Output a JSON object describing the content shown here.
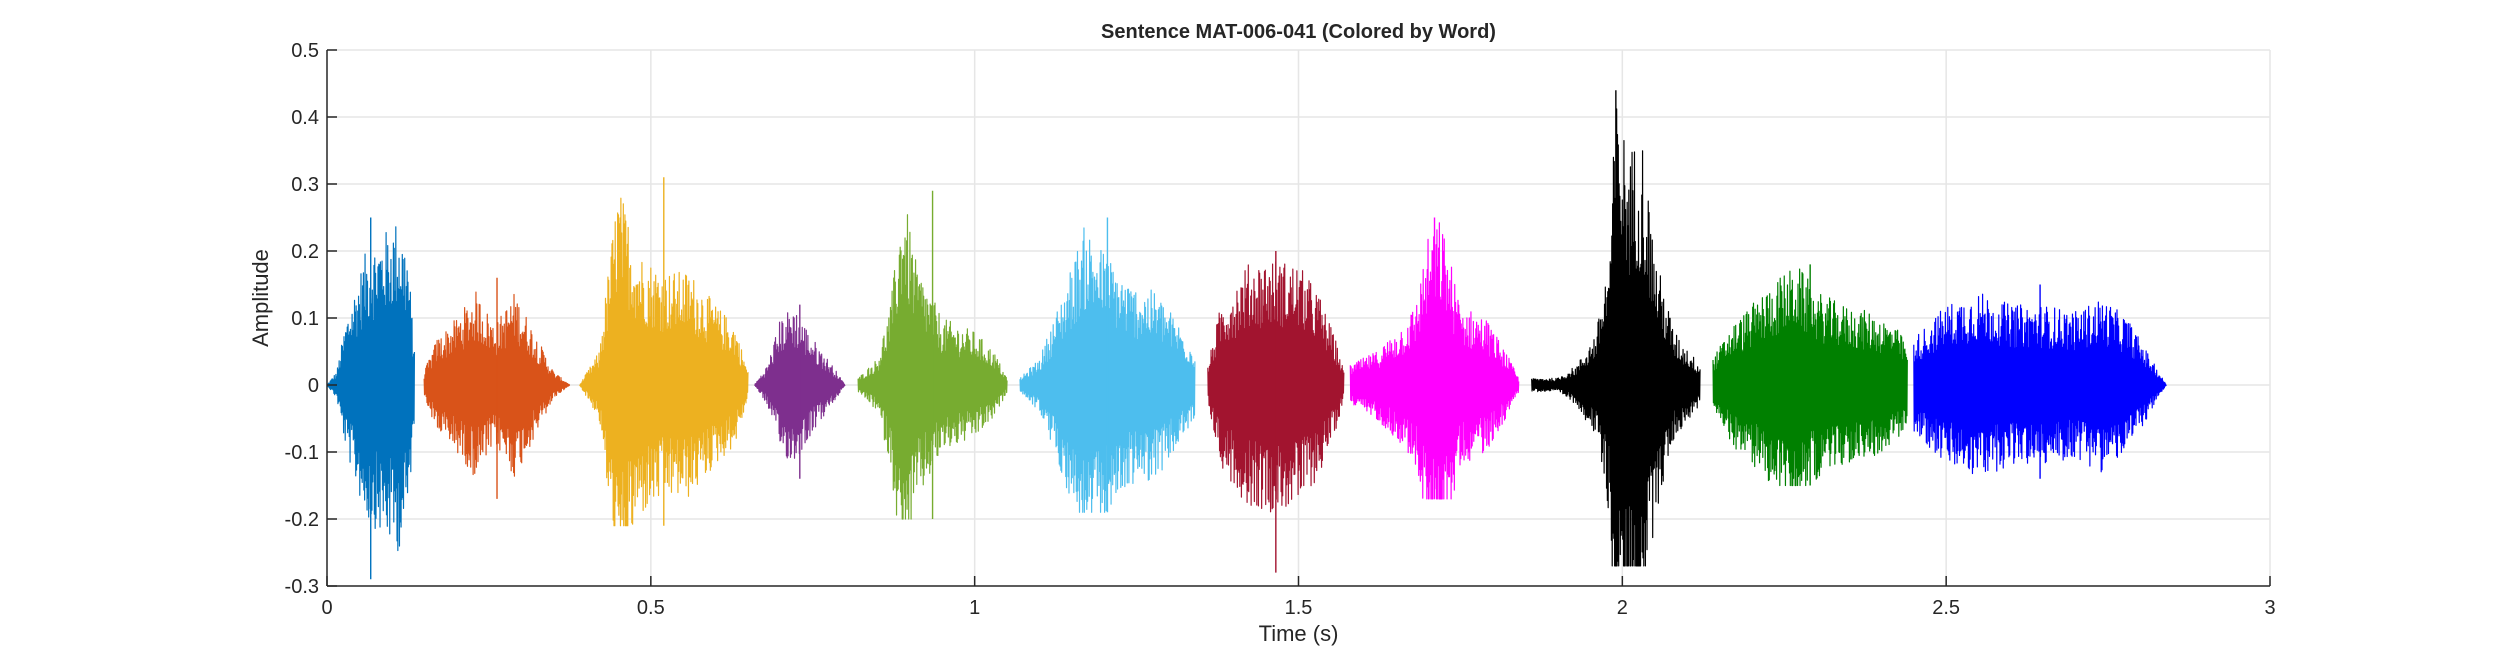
{
  "chart_data": {
    "type": "line",
    "title": "Sentence MAT-006-041 (Colored by Word)",
    "xlabel": "Time (s)",
    "ylabel": "Amplitude",
    "xlim": [
      0,
      3
    ],
    "ylim": [
      -0.3,
      0.5
    ],
    "xticks": [
      0,
      0.5,
      1,
      1.5,
      2,
      2.5,
      3
    ],
    "xtick_labels": [
      "0",
      "0.5",
      "1",
      "1.5",
      "2",
      "2.5",
      "3"
    ],
    "yticks": [
      -0.3,
      -0.2,
      -0.1,
      0,
      0.1,
      0.2,
      0.3,
      0.4,
      0.5
    ],
    "ytick_labels": [
      "-0.3",
      "-0.2",
      "-0.1",
      "0",
      "0.1",
      "0.2",
      "0.3",
      "0.4",
      "0.5"
    ],
    "grid": true,
    "series": [
      {
        "start": 0.0,
        "end": 0.135,
        "peak_max": 0.25,
        "peak_min": -0.29,
        "color": "#0072BD",
        "envelope": [
          [
            0.0,
            0.0
          ],
          [
            0.015,
            0.02
          ],
          [
            0.03,
            0.1
          ],
          [
            0.06,
            0.2
          ],
          [
            0.09,
            0.23
          ],
          [
            0.11,
            0.25
          ],
          [
            0.125,
            0.2
          ],
          [
            0.135,
            0.05
          ]
        ]
      },
      {
        "start": 0.15,
        "end": 0.375,
        "peak_max": 0.16,
        "peak_min": -0.17,
        "color": "#D95319",
        "envelope": [
          [
            0.15,
            0.02
          ],
          [
            0.17,
            0.07
          ],
          [
            0.2,
            0.1
          ],
          [
            0.23,
            0.14
          ],
          [
            0.26,
            0.09
          ],
          [
            0.29,
            0.14
          ],
          [
            0.32,
            0.08
          ],
          [
            0.35,
            0.02
          ],
          [
            0.375,
            0.0
          ]
        ]
      },
      {
        "start": 0.39,
        "end": 0.65,
        "peak_max": 0.31,
        "peak_min": -0.21,
        "color": "#EDB120",
        "envelope": [
          [
            0.39,
            0.0
          ],
          [
            0.42,
            0.05
          ],
          [
            0.44,
            0.22
          ],
          [
            0.45,
            0.3
          ],
          [
            0.48,
            0.2
          ],
          [
            0.52,
            0.17
          ],
          [
            0.56,
            0.17
          ],
          [
            0.6,
            0.12
          ],
          [
            0.63,
            0.09
          ],
          [
            0.65,
            0.02
          ]
        ]
      },
      {
        "start": 0.66,
        "end": 0.8,
        "peak_max": 0.12,
        "peak_min": -0.14,
        "color": "#7E2F8E",
        "envelope": [
          [
            0.66,
            0.0
          ],
          [
            0.68,
            0.03
          ],
          [
            0.7,
            0.1
          ],
          [
            0.72,
            0.12
          ],
          [
            0.75,
            0.07
          ],
          [
            0.78,
            0.03
          ],
          [
            0.8,
            0.0
          ]
        ]
      },
      {
        "start": 0.82,
        "end": 1.05,
        "peak_max": 0.29,
        "peak_min": -0.2,
        "color": "#77AC30",
        "envelope": [
          [
            0.82,
            0.01
          ],
          [
            0.85,
            0.04
          ],
          [
            0.87,
            0.12
          ],
          [
            0.89,
            0.29
          ],
          [
            0.91,
            0.18
          ],
          [
            0.95,
            0.1
          ],
          [
            1.0,
            0.08
          ],
          [
            1.03,
            0.05
          ],
          [
            1.05,
            0.01
          ]
        ]
      },
      {
        "start": 1.07,
        "end": 1.34,
        "peak_max": 0.25,
        "peak_min": -0.19,
        "color": "#4DBEEE",
        "envelope": [
          [
            1.07,
            0.01
          ],
          [
            1.1,
            0.04
          ],
          [
            1.13,
            0.12
          ],
          [
            1.17,
            0.24
          ],
          [
            1.2,
            0.2
          ],
          [
            1.24,
            0.15
          ],
          [
            1.28,
            0.14
          ],
          [
            1.31,
            0.1
          ],
          [
            1.34,
            0.05
          ]
        ]
      },
      {
        "start": 1.36,
        "end": 1.57,
        "peak_max": 0.2,
        "peak_min": -0.28,
        "color": "#A2142F",
        "envelope": [
          [
            1.36,
            0.03
          ],
          [
            1.38,
            0.12
          ],
          [
            1.42,
            0.18
          ],
          [
            1.46,
            0.19
          ],
          [
            1.5,
            0.18
          ],
          [
            1.53,
            0.14
          ],
          [
            1.56,
            0.06
          ],
          [
            1.57,
            0.02
          ]
        ]
      },
      {
        "start": 1.58,
        "end": 1.84,
        "peak_max": 0.25,
        "peak_min": -0.17,
        "color": "#FF00FF",
        "envelope": [
          [
            1.58,
            0.03
          ],
          [
            1.62,
            0.05
          ],
          [
            1.66,
            0.09
          ],
          [
            1.68,
            0.12
          ],
          [
            1.7,
            0.22
          ],
          [
            1.72,
            0.25
          ],
          [
            1.75,
            0.12
          ],
          [
            1.79,
            0.1
          ],
          [
            1.82,
            0.05
          ],
          [
            1.84,
            0.01
          ]
        ]
      },
      {
        "start": 1.86,
        "end": 2.12,
        "peak_max": 0.44,
        "peak_min": -0.27,
        "color": "#000000",
        "envelope": [
          [
            1.86,
            0.01
          ],
          [
            1.9,
            0.01
          ],
          [
            1.93,
            0.03
          ],
          [
            1.96,
            0.08
          ],
          [
            1.98,
            0.2
          ],
          [
            1.99,
            0.43
          ],
          [
            2.01,
            0.35
          ],
          [
            2.03,
            0.38
          ],
          [
            2.05,
            0.2
          ],
          [
            2.08,
            0.08
          ],
          [
            2.12,
            0.03
          ]
        ]
      },
      {
        "start": 2.14,
        "end": 2.44,
        "peak_max": 0.18,
        "peak_min": -0.15,
        "color": "#008000",
        "envelope": [
          [
            2.14,
            0.04
          ],
          [
            2.17,
            0.09
          ],
          [
            2.2,
            0.12
          ],
          [
            2.24,
            0.16
          ],
          [
            2.27,
            0.18
          ],
          [
            2.3,
            0.14
          ],
          [
            2.34,
            0.12
          ],
          [
            2.38,
            0.11
          ],
          [
            2.42,
            0.09
          ],
          [
            2.44,
            0.06
          ]
        ]
      },
      {
        "start": 2.45,
        "end": 2.84,
        "peak_max": 0.15,
        "peak_min": -0.14,
        "color": "#0000FF",
        "envelope": [
          [
            2.45,
            0.07
          ],
          [
            2.5,
            0.12
          ],
          [
            2.55,
            0.14
          ],
          [
            2.6,
            0.12
          ],
          [
            2.65,
            0.12
          ],
          [
            2.7,
            0.11
          ],
          [
            2.74,
            0.13
          ],
          [
            2.78,
            0.1
          ],
          [
            2.81,
            0.05
          ],
          [
            2.84,
            0.0
          ]
        ]
      }
    ]
  }
}
